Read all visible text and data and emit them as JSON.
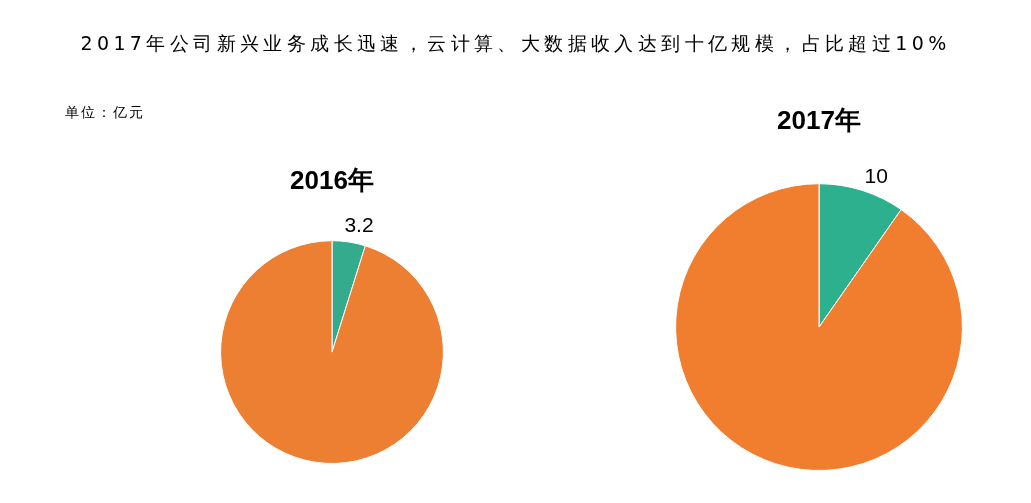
{
  "chart_data": [
    {
      "type": "pie",
      "title": "2016年",
      "categories": [
        null,
        null
      ],
      "values": [
        3.2,
        63
      ],
      "colors": [
        "#34ab8d",
        "#ed7f33"
      ],
      "value_labels": [
        "3.2",
        null
      ],
      "annotations": [
        "2017年公司新兴业务成长迅速，云计算、大数据收入达到十亿规模，占比超过10%",
        "单位：亿元"
      ]
    },
    {
      "type": "pie",
      "title": "2017年",
      "categories": [
        null,
        null
      ],
      "values": [
        10,
        93
      ],
      "colors": [
        "#2db08e",
        "#f17e2e"
      ],
      "value_labels": [
        "10",
        null
      ]
    }
  ]
}
